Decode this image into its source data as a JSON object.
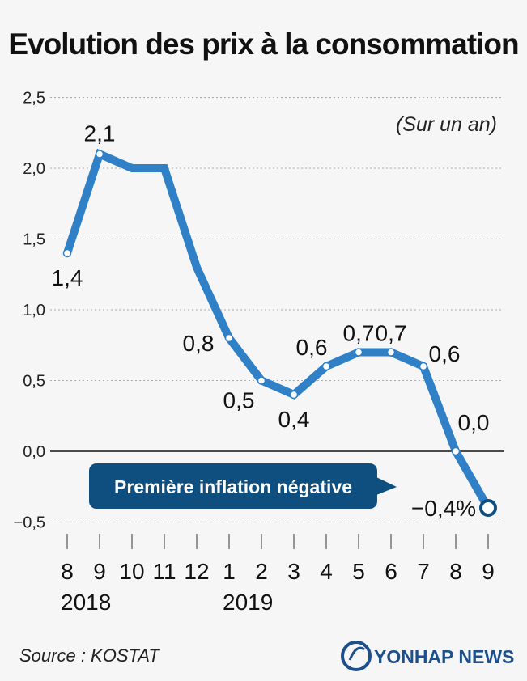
{
  "title": "Evolution des prix à la consommation",
  "unit_note": "(Sur un an)",
  "callout": "Première inflation négative",
  "source": "Source : KOSTAT",
  "brand": "YONHAP NEWS",
  "colors": {
    "line": "#2f80c6",
    "callout_bg": "#0e4f80",
    "grid": "#aaaaaa"
  },
  "chart_data": {
    "type": "line",
    "categories": [
      "8",
      "9",
      "10",
      "11",
      "12",
      "1",
      "2",
      "3",
      "4",
      "5",
      "6",
      "7",
      "8",
      "9"
    ],
    "years": [
      {
        "label": "2018",
        "index": 0
      },
      {
        "label": "2019",
        "index": 5
      }
    ],
    "series": [
      {
        "values": [
          1.4,
          2.1,
          2.0,
          2.0,
          1.3,
          0.8,
          0.5,
          0.4,
          0.6,
          0.7,
          0.7,
          0.6,
          0.0,
          -0.4
        ]
      }
    ],
    "data_labels": [
      {
        "index": 0,
        "text": "1,4"
      },
      {
        "index": 1,
        "text": "2,1"
      },
      {
        "index": 5,
        "text": "0,8"
      },
      {
        "index": 6,
        "text": "0,5"
      },
      {
        "index": 7,
        "text": "0,4"
      },
      {
        "index": 8,
        "text": "0,6"
      },
      {
        "index": 9,
        "text": "0,7"
      },
      {
        "index": 10,
        "text": "0,7"
      },
      {
        "index": 11,
        "text": "0,6"
      },
      {
        "index": 12,
        "text": "0,0"
      },
      {
        "index": 13,
        "text": "−0,4%"
      }
    ],
    "marker_indices": [
      0,
      1,
      5,
      6,
      7,
      8,
      9,
      10,
      11,
      12,
      13
    ],
    "yticks": [
      {
        "value": 2.5,
        "label": "2,5"
      },
      {
        "value": 2.0,
        "label": "2,0"
      },
      {
        "value": 1.5,
        "label": "1,5"
      },
      {
        "value": 1.0,
        "label": "1,0"
      },
      {
        "value": 0.5,
        "label": "0,5"
      },
      {
        "value": 0.0,
        "label": "0,0"
      },
      {
        "value": -0.5,
        "label": "−0,5"
      }
    ],
    "ylim": [
      -0.5,
      2.5
    ],
    "grid": true
  }
}
